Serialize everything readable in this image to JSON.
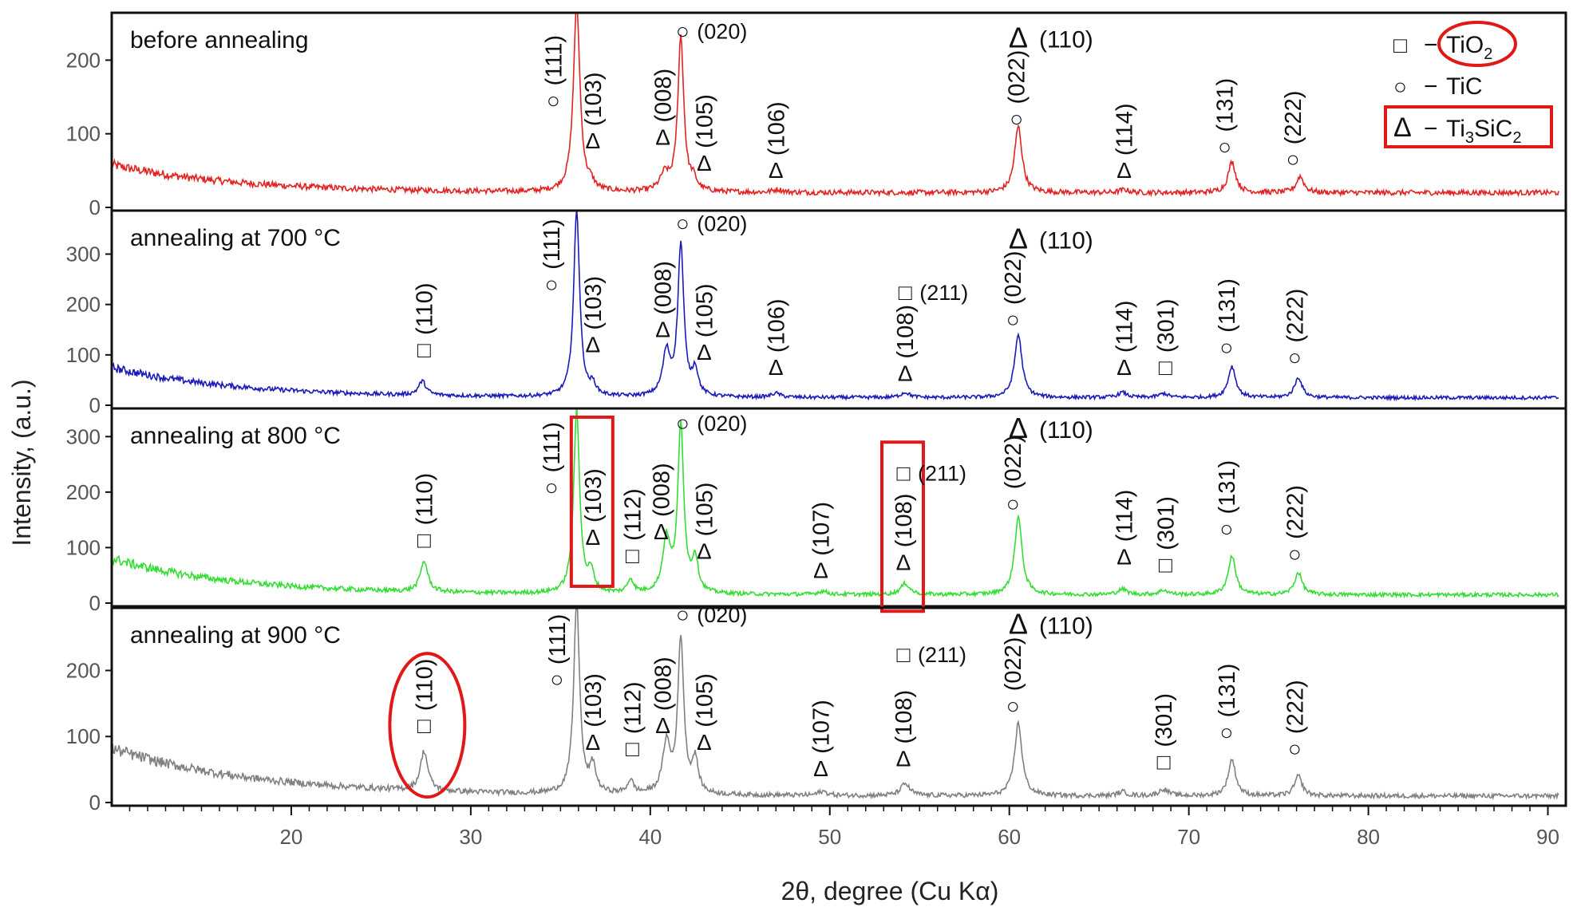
{
  "chart_data": {
    "type": "line",
    "title": "",
    "xlabel": "2θ, degree (Cu Kα)",
    "ylabel": "Intensity, (a.u.)",
    "xlim": [
      10,
      91
    ],
    "x_ticks": [
      20,
      30,
      40,
      50,
      60,
      70,
      80,
      90
    ],
    "grid": false,
    "legend_position": "top-right",
    "legend": [
      {
        "marker": "□",
        "dash": "−",
        "label": "TiO",
        "sub": "2",
        "highlight": "ellipse"
      },
      {
        "marker": "○",
        "dash": "−",
        "label": "TiC",
        "sub": "",
        "highlight": ""
      },
      {
        "marker": "Δ",
        "dash": "−",
        "label": "Ti",
        "sub": "3",
        "label2": "SiC",
        "sub2": "2",
        "highlight": "box"
      }
    ],
    "panels": [
      {
        "name": "before annealing",
        "color": "#e32222",
        "ylim": [
          0,
          260
        ],
        "yticks": [
          0,
          100,
          200
        ],
        "baseline": {
          "a": 20,
          "b": 38,
          "tau": 7
        },
        "peaks": [
          [
            35.9,
            255,
            0.22
          ],
          [
            36.7,
            8,
            0.2
          ],
          [
            40.8,
            22,
            0.3
          ],
          [
            41.7,
            210,
            0.2
          ],
          [
            42.4,
            14,
            0.2
          ],
          [
            47.1,
            4,
            0.3
          ],
          [
            60.5,
            90,
            0.25
          ],
          [
            66.4,
            4,
            0.3
          ],
          [
            72.4,
            42,
            0.25
          ],
          [
            76.2,
            22,
            0.25
          ]
        ],
        "annotations": [
          {
            "sym": "○",
            "hkl": "(111)",
            "x": 34.6,
            "y": 135,
            "orient": "v"
          },
          {
            "sym": "Δ",
            "hkl": "(103)",
            "x": 36.8,
            "y": 80,
            "orient": "v"
          },
          {
            "sym": "Δ",
            "hkl": "(008)",
            "x": 40.7,
            "y": 85,
            "orient": "v"
          },
          {
            "sym": "○",
            "hkl": "(020)",
            "x": 41.8,
            "y": 240,
            "orient": "h"
          },
          {
            "sym": "Δ",
            "hkl": "(105)",
            "x": 43.0,
            "y": 50,
            "orient": "v"
          },
          {
            "sym": "Δ",
            "hkl": "(106)",
            "x": 47.0,
            "y": 40,
            "orient": "v"
          },
          {
            "sym": "○",
            "hkl": "(022)",
            "x": 60.4,
            "y": 110,
            "orient": "v"
          },
          {
            "sym": "Δ",
            "hkl": "(110)",
            "x": 60.5,
            "y": 230,
            "orient": "big"
          },
          {
            "sym": "Δ",
            "hkl": "(114)",
            "x": 66.4,
            "y": 40,
            "orient": "v"
          },
          {
            "sym": "○",
            "hkl": "(131)",
            "x": 72.0,
            "y": 72,
            "orient": "v"
          },
          {
            "sym": "○",
            "hkl": "(222)",
            "x": 75.8,
            "y": 55,
            "orient": "v"
          }
        ]
      },
      {
        "name": "annealing at 700 °C",
        "color": "#1a1ab8",
        "ylim": [
          0,
          380
        ],
        "yticks": [
          0,
          100,
          200,
          300
        ],
        "baseline": {
          "a": 15,
          "b": 60,
          "tau": 7
        },
        "peaks": [
          [
            27.3,
            28,
            0.25
          ],
          [
            35.9,
            370,
            0.2
          ],
          [
            36.8,
            20,
            0.2
          ],
          [
            40.9,
            85,
            0.25
          ],
          [
            41.7,
            300,
            0.2
          ],
          [
            42.5,
            50,
            0.2
          ],
          [
            47.0,
            8,
            0.3
          ],
          [
            54.2,
            10,
            0.3
          ],
          [
            60.5,
            125,
            0.25
          ],
          [
            66.3,
            10,
            0.3
          ],
          [
            68.6,
            8,
            0.3
          ],
          [
            72.4,
            62,
            0.25
          ],
          [
            76.1,
            40,
            0.25
          ]
        ],
        "annotations": [
          {
            "sym": "□",
            "hkl": "(110)",
            "x": 27.4,
            "y": 95,
            "orient": "v"
          },
          {
            "sym": "○",
            "hkl": "(111)",
            "x": 34.5,
            "y": 225,
            "orient": "v"
          },
          {
            "sym": "Δ",
            "hkl": "(103)",
            "x": 36.8,
            "y": 105,
            "orient": "v"
          },
          {
            "sym": "Δ",
            "hkl": "(008)",
            "x": 40.7,
            "y": 135,
            "orient": "v"
          },
          {
            "sym": "○",
            "hkl": "(020)",
            "x": 41.8,
            "y": 362,
            "orient": "h"
          },
          {
            "sym": "Δ",
            "hkl": "(105)",
            "x": 43.0,
            "y": 90,
            "orient": "v"
          },
          {
            "sym": "Δ",
            "hkl": "(106)",
            "x": 47.0,
            "y": 60,
            "orient": "v"
          },
          {
            "sym": "Δ",
            "hkl": "(108)",
            "x": 54.2,
            "y": 48,
            "orient": "v"
          },
          {
            "sym": "□",
            "hkl": "(211)",
            "x": 54.2,
            "y": 225,
            "orient": "h"
          },
          {
            "sym": "○",
            "hkl": "(022)",
            "x": 60.2,
            "y": 155,
            "orient": "v"
          },
          {
            "sym": "Δ",
            "hkl": "(110)",
            "x": 60.5,
            "y": 330,
            "orient": "big"
          },
          {
            "sym": "Δ",
            "hkl": "(114)",
            "x": 66.4,
            "y": 60,
            "orient": "v"
          },
          {
            "sym": "□",
            "hkl": "(301)",
            "x": 68.7,
            "y": 60,
            "orient": "v"
          },
          {
            "sym": "○",
            "hkl": "(131)",
            "x": 72.1,
            "y": 100,
            "orient": "v"
          },
          {
            "sym": "○",
            "hkl": "(222)",
            "x": 75.9,
            "y": 80,
            "orient": "v"
          }
        ]
      },
      {
        "name": "annealing  at 800 °C",
        "color": "#33dd33",
        "ylim": [
          0,
          345
        ],
        "yticks": [
          0,
          100,
          200,
          300
        ],
        "baseline": {
          "a": 15,
          "b": 65,
          "tau": 7
        },
        "peaks": [
          [
            27.4,
            55,
            0.25
          ],
          [
            35.9,
            330,
            0.2
          ],
          [
            36.7,
            35,
            0.2
          ],
          [
            38.9,
            25,
            0.2
          ],
          [
            40.9,
            95,
            0.25
          ],
          [
            41.7,
            300,
            0.2
          ],
          [
            42.5,
            60,
            0.2
          ],
          [
            49.6,
            6,
            0.3
          ],
          [
            54.2,
            20,
            0.3
          ],
          [
            60.5,
            140,
            0.25
          ],
          [
            66.3,
            10,
            0.3
          ],
          [
            68.6,
            8,
            0.3
          ],
          [
            72.4,
            70,
            0.25
          ],
          [
            76.1,
            40,
            0.25
          ]
        ],
        "annotations": [
          {
            "sym": "□",
            "hkl": "(110)",
            "x": 27.4,
            "y": 100,
            "orient": "v"
          },
          {
            "sym": "○",
            "hkl": "(111)",
            "x": 34.5,
            "y": 195,
            "orient": "v"
          },
          {
            "sym": "Δ",
            "hkl": "(103)",
            "x": 36.8,
            "y": 105,
            "orient": "v",
            "box": true
          },
          {
            "sym": "□",
            "hkl": "(112)",
            "x": 39.0,
            "y": 72,
            "orient": "v"
          },
          {
            "sym": "Δ",
            "hkl": "(008)",
            "x": 40.6,
            "y": 115,
            "orient": "v"
          },
          {
            "sym": "○",
            "hkl": "(020)",
            "x": 41.8,
            "y": 325,
            "orient": "h"
          },
          {
            "sym": "Δ",
            "hkl": "(105)",
            "x": 43.0,
            "y": 80,
            "orient": "v"
          },
          {
            "sym": "Δ",
            "hkl": "(107)",
            "x": 49.5,
            "y": 45,
            "orient": "v"
          },
          {
            "sym": "Δ",
            "hkl": "(108)",
            "x": 54.1,
            "y": 60,
            "orient": "v",
            "box": true
          },
          {
            "sym": "□",
            "hkl": "(211)",
            "x": 54.1,
            "y": 235,
            "orient": "h"
          },
          {
            "sym": "○",
            "hkl": "(022)",
            "x": 60.2,
            "y": 165,
            "orient": "v"
          },
          {
            "sym": "Δ",
            "hkl": "(110)",
            "x": 60.5,
            "y": 315,
            "orient": "big"
          },
          {
            "sym": "Δ",
            "hkl": "(114)",
            "x": 66.4,
            "y": 70,
            "orient": "v"
          },
          {
            "sym": "□",
            "hkl": "(301)",
            "x": 68.7,
            "y": 55,
            "orient": "v"
          },
          {
            "sym": "○",
            "hkl": "(131)",
            "x": 72.1,
            "y": 120,
            "orient": "v"
          },
          {
            "sym": "○",
            "hkl": "(222)",
            "x": 75.9,
            "y": 75,
            "orient": "v"
          }
        ]
      },
      {
        "name": "annealing at 900 °C",
        "color": "#808080",
        "ylim": [
          0,
          290
        ],
        "yticks": [
          0,
          100,
          200
        ],
        "baseline": {
          "a": 10,
          "b": 72,
          "tau": 8
        },
        "peaks": [
          [
            27.4,
            60,
            0.25
          ],
          [
            35.9,
            290,
            0.2
          ],
          [
            36.8,
            40,
            0.2
          ],
          [
            38.9,
            20,
            0.2
          ],
          [
            40.9,
            75,
            0.25
          ],
          [
            41.7,
            235,
            0.2
          ],
          [
            42.5,
            50,
            0.2
          ],
          [
            49.6,
            6,
            0.3
          ],
          [
            54.2,
            18,
            0.3
          ],
          [
            60.5,
            110,
            0.25
          ],
          [
            66.3,
            6,
            0.3
          ],
          [
            68.6,
            10,
            0.3
          ],
          [
            72.4,
            55,
            0.25
          ],
          [
            76.1,
            30,
            0.25
          ]
        ],
        "annotations": [
          {
            "sym": "□",
            "hkl": "(110)",
            "x": 27.4,
            "y": 105,
            "orient": "v",
            "ellipse": true
          },
          {
            "sym": "○",
            "hkl": "(111)",
            "x": 34.8,
            "y": 175,
            "orient": "v"
          },
          {
            "sym": "Δ",
            "hkl": "(103)",
            "x": 36.8,
            "y": 80,
            "orient": "v"
          },
          {
            "sym": "□",
            "hkl": "(112)",
            "x": 39.0,
            "y": 70,
            "orient": "v"
          },
          {
            "sym": "Δ",
            "hkl": "(008)",
            "x": 40.7,
            "y": 105,
            "orient": "v"
          },
          {
            "sym": "○",
            "hkl": "(020)",
            "x": 41.8,
            "y": 285,
            "orient": "h"
          },
          {
            "sym": "Δ",
            "hkl": "(105)",
            "x": 43.0,
            "y": 80,
            "orient": "v"
          },
          {
            "sym": "Δ",
            "hkl": "(107)",
            "x": 49.5,
            "y": 40,
            "orient": "v"
          },
          {
            "sym": "Δ",
            "hkl": "(108)",
            "x": 54.1,
            "y": 55,
            "orient": "v"
          },
          {
            "sym": "□",
            "hkl": "(211)",
            "x": 54.1,
            "y": 225,
            "orient": "h"
          },
          {
            "sym": "○",
            "hkl": "(022)",
            "x": 60.2,
            "y": 135,
            "orient": "v"
          },
          {
            "sym": "Δ",
            "hkl": "(110)",
            "x": 60.5,
            "y": 270,
            "orient": "big"
          },
          {
            "sym": "□",
            "hkl": "(301)",
            "x": 68.6,
            "y": 50,
            "orient": "v"
          },
          {
            "sym": "○",
            "hkl": "(131)",
            "x": 72.1,
            "y": 95,
            "orient": "v"
          },
          {
            "sym": "○",
            "hkl": "(222)",
            "x": 75.9,
            "y": 70,
            "orient": "v"
          }
        ]
      }
    ]
  }
}
